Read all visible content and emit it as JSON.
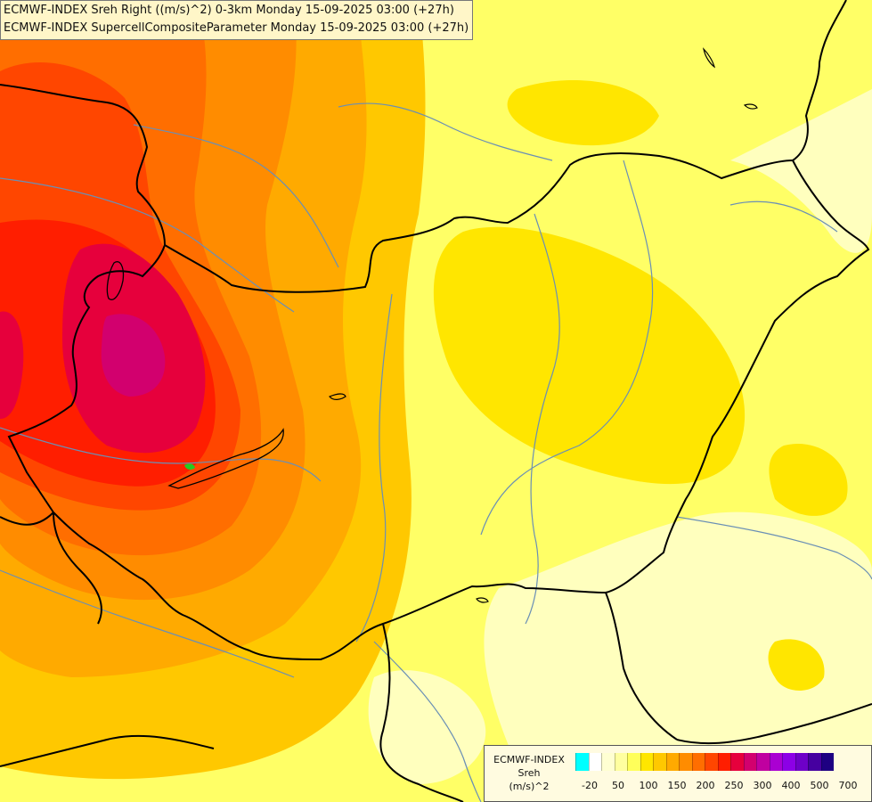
{
  "header": {
    "line1": "ECMWF-INDEX Sreh Right ((m/s)^2) 0-3km Monday 15-09-2025 03:00 (+27h)",
    "line2": "ECMWF-INDEX SupercellCompositeParameter Monday 15-09-2025 03:00 (+27h)"
  },
  "legend": {
    "source": "ECMWF-INDEX",
    "variable": "Sreh",
    "unit": "(m/s)^2",
    "tick_labels": [
      "-20",
      "50",
      "100",
      "150",
      "200",
      "250",
      "300",
      "400",
      "500",
      "700"
    ],
    "colors": [
      "#00ffff",
      "#ffffff",
      "#ffffd2",
      "#ffffa0",
      "#ffff5a",
      "#ffe600",
      "#ffc800",
      "#ffaa00",
      "#ff8c00",
      "#ff6e00",
      "#ff4600",
      "#ff1e00",
      "#e6003c",
      "#d2006e",
      "#c000a0",
      "#aa00d2",
      "#8c00e6",
      "#6e00c8",
      "#4600a0",
      "#1e0082"
    ]
  },
  "map": {
    "background_color": "#ffff66",
    "border_color": "#000000",
    "river_color": "#6a8fb5"
  }
}
